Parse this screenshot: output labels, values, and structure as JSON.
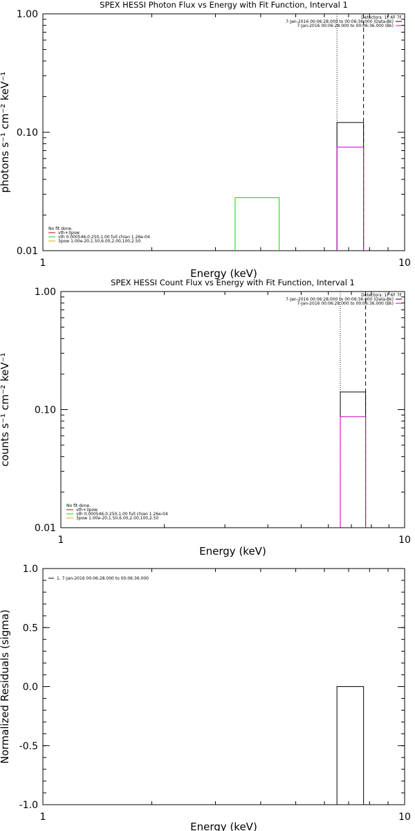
{
  "chart_data": [
    {
      "type": "step",
      "title": "SPEX HESSI Photon Flux vs Energy with Fit Function, Interval 1",
      "xlabel": "Energy (keV)",
      "ylabel": "photons s⁻¹ cm⁻² keV⁻¹",
      "xscale": "log",
      "yscale": "log",
      "xlim": [
        1,
        10
      ],
      "ylim": [
        0.01,
        1.0
      ],
      "x_ticks": [
        "1",
        "10"
      ],
      "y_ticks": [
        "0.01",
        "0.10",
        "1.00"
      ],
      "legend_right": [
        "Detectors: 1F 6F 7F",
        "7-Jan-2016 00:06:28.000 to 00:06:36.000 (Data-Bk)",
        "7-Jan-2016 00:06:28.000 to 00:06:36.000 (Bk)"
      ],
      "legend_left": [
        "No fit done.",
        "vth+3pow",
        "vth 0.000546,0.250,1.00  full chian 1.26e-04",
        "3pow 1.00e-20,1.50,6.00,2.00,100,2.50"
      ],
      "series": [
        {
          "name": "7-Jan-2016 00:06:28.000 to 00:06:36.000 (Data-Bk)",
          "color": "#000000",
          "bins": [
            [
              6.5,
              7.7,
              0.121
            ]
          ]
        },
        {
          "name": "7-Jan-2016 00:06:28.000 to 00:06:36.000 (Bk)",
          "color": "#cc00cc",
          "bins": [
            [
              6.5,
              7.7,
              0.075
            ]
          ]
        },
        {
          "name": "vth 0.000546,0.250,1.00  full chian 1.26e-04",
          "color": "#00dd00",
          "bins": [
            [
              3.4,
              4.5,
              0.028
            ]
          ]
        }
      ],
      "vlines": [
        {
          "x": 6.5,
          "style": "dotted"
        },
        {
          "x": 7.7,
          "style": "dashed"
        }
      ]
    },
    {
      "type": "step",
      "title": "SPEX HESSI Count Flux vs Energy with Fit Function, Interval 1",
      "xlabel": "Energy (keV)",
      "ylabel": "counts s⁻¹ cm⁻² keV⁻¹",
      "xscale": "log",
      "yscale": "log",
      "xlim": [
        1,
        10
      ],
      "ylim": [
        0.01,
        1.0
      ],
      "x_ticks": [
        "1",
        "10"
      ],
      "y_ticks": [
        "0.01",
        "0.10",
        "1.00"
      ],
      "legend_right": [
        "Detectors: 1F 6F 7F",
        "7-Jan-2016 00:06:28.000 to 00:06:36.000 (Data-Bk)",
        "7-Jan-2016 00:06:28.000 to 00:06:36.000 (Bk)"
      ],
      "legend_left": [
        "No fit done.",
        "vth+3pow",
        "vth 0.000546,0.250,1.00  full chian 1.26e-04",
        "3pow 1.00e-20,1.50,6.00,2.00,100,2.50"
      ],
      "series": [
        {
          "name": "7-Jan-2016 00:06:28.000 to 00:06:36.000 (Data-Bk)",
          "color": "#000000",
          "bins": [
            [
              6.5,
              7.7,
              0.141
            ]
          ]
        },
        {
          "name": "7-Jan-2016 00:06:28.000 to 00:06:36.000 (Bk)",
          "color": "#cc00cc",
          "bins": [
            [
              6.5,
              7.7,
              0.087
            ]
          ]
        }
      ],
      "vlines": [
        {
          "x": 6.5,
          "style": "dotted"
        },
        {
          "x": 7.7,
          "style": "dashed"
        }
      ]
    },
    {
      "type": "step",
      "title": "",
      "xlabel": "Energy (keV)",
      "ylabel": "Normalized Residuals (sigma)",
      "xscale": "log",
      "yscale": "linear",
      "xlim": [
        1,
        10
      ],
      "ylim": [
        -1.0,
        1.0
      ],
      "x_ticks": [
        "1",
        "10"
      ],
      "y_ticks": [
        "-1.0",
        "-0.5",
        "0.0",
        "0.5",
        "1.0"
      ],
      "legend_left": [
        "1.  7-Jan-2016 00:06:28.000 to 00:06:36.000"
      ],
      "series": [
        {
          "name": "1.  7-Jan-2016 00:06:28.000 to 00:06:36.000",
          "color": "#000000",
          "bins": [
            [
              6.5,
              7.7,
              0.0
            ]
          ]
        }
      ]
    }
  ]
}
